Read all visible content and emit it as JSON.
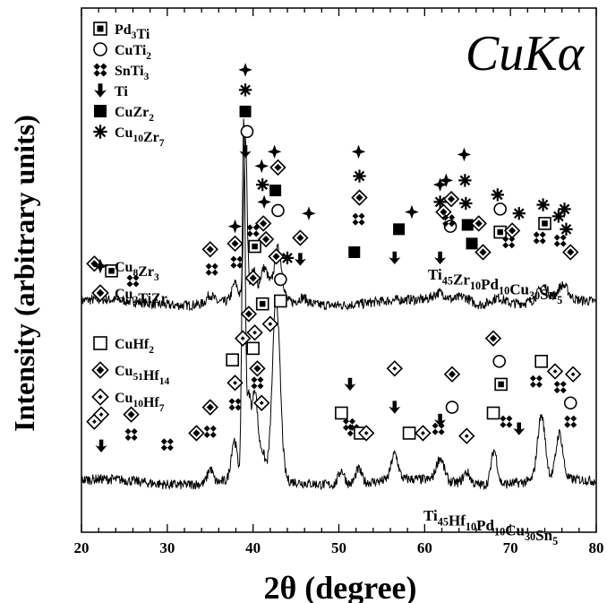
{
  "chart_data": {
    "type": "line",
    "title": "CuKα",
    "xlabel": "2θ (degree)",
    "ylabel": "Intensity (arbitrary units)",
    "xlim": [
      20,
      80
    ],
    "x_ticks": [
      20,
      30,
      40,
      50,
      60,
      70,
      80
    ],
    "grid": false,
    "series": [
      {
        "name": "Ti45Zr10Pd10Cu30Sn5",
        "label": {
          "base": [
            [
              "Ti",
              "45"
            ],
            [
              "Zr",
              "10"
            ],
            [
              "Pd",
              "10"
            ],
            [
              "Cu",
              "30"
            ],
            [
              "Sn",
              "5"
            ]
          ]
        },
        "baseline": 1.25,
        "peaks": [
          {
            "x": 35.0,
            "h": 0.06,
            "w": 0.4
          },
          {
            "x": 37.9,
            "h": 0.12,
            "w": 0.35
          },
          {
            "x": 39.1,
            "h": 1.15,
            "w": 0.2
          },
          {
            "x": 40.0,
            "h": 0.2,
            "w": 0.3
          },
          {
            "x": 41.3,
            "h": 0.22,
            "w": 0.5
          },
          {
            "x": 42.9,
            "h": 0.36,
            "w": 0.45
          },
          {
            "x": 45.8,
            "h": 0.04,
            "w": 0.5
          },
          {
            "x": 61.8,
            "h": 0.06,
            "w": 0.8
          },
          {
            "x": 64.5,
            "h": 0.05,
            "w": 0.8
          },
          {
            "x": 68.5,
            "h": 0.05,
            "w": 0.8
          },
          {
            "x": 73.8,
            "h": 0.1,
            "w": 0.6
          },
          {
            "x": 76.1,
            "h": 0.1,
            "w": 0.6
          }
        ]
      },
      {
        "name": "Ti45Hf10Pd10Cu30Sn5",
        "label": {
          "base": [
            [
              "Ti",
              "45"
            ],
            [
              "Hf",
              "10"
            ],
            [
              "Pd",
              "10"
            ],
            [
              "Cu",
              "30"
            ],
            [
              "Sn",
              "5"
            ]
          ]
        },
        "baseline": 0.0,
        "peaks": [
          {
            "x": 35.0,
            "h": 0.1,
            "w": 0.3
          },
          {
            "x": 37.8,
            "h": 0.28,
            "w": 0.35
          },
          {
            "x": 38.9,
            "h": 2.5,
            "w": 0.18
          },
          {
            "x": 39.5,
            "h": 0.55,
            "w": 0.25
          },
          {
            "x": 40.2,
            "h": 0.6,
            "w": 0.3
          },
          {
            "x": 41.0,
            "h": 0.2,
            "w": 0.4
          },
          {
            "x": 42.7,
            "h": 1.25,
            "w": 0.45
          },
          {
            "x": 50.3,
            "h": 0.1,
            "w": 0.35
          },
          {
            "x": 52.3,
            "h": 0.1,
            "w": 0.35
          },
          {
            "x": 56.5,
            "h": 0.18,
            "w": 0.4
          },
          {
            "x": 61.8,
            "h": 0.16,
            "w": 0.45
          },
          {
            "x": 64.9,
            "h": 0.08,
            "w": 0.4
          },
          {
            "x": 68.1,
            "h": 0.24,
            "w": 0.35
          },
          {
            "x": 73.6,
            "h": 0.45,
            "w": 0.45
          },
          {
            "x": 75.7,
            "h": 0.32,
            "w": 0.4
          }
        ]
      }
    ],
    "legend_top": [
      {
        "marker": "sq-dot",
        "formula": [
          [
            "Pd",
            "3"
          ],
          [
            "Ti",
            ""
          ]
        ]
      },
      {
        "marker": "circle",
        "formula": [
          [
            "CuTi",
            "2"
          ]
        ]
      },
      {
        "marker": "four-diamond",
        "formula": [
          [
            "SnTi",
            "3"
          ]
        ]
      },
      {
        "marker": "arrow",
        "formula": [
          [
            "Ti",
            ""
          ]
        ]
      },
      {
        "marker": "filled-square",
        "formula": [
          [
            "CuZr",
            "2"
          ]
        ]
      },
      {
        "marker": "asterisk",
        "formula": [
          [
            "Cu",
            "10"
          ],
          [
            "Zr",
            "7"
          ]
        ]
      }
    ],
    "legend_middle": [
      {
        "marker": "star4",
        "formula": [
          [
            "Cu",
            "8"
          ],
          [
            "Zr",
            "3"
          ]
        ]
      },
      {
        "marker": "diamond-dot",
        "formula": [
          [
            "Cu",
            "2"
          ],
          [
            "TiZr",
            ""
          ]
        ]
      }
    ],
    "legend_bottom": [
      {
        "marker": "open-square",
        "formula": [
          [
            "CuHf",
            "2"
          ]
        ]
      },
      {
        "marker": "diamond-dot",
        "formula": [
          [
            "Cu",
            "51"
          ],
          [
            "Hf",
            "14"
          ]
        ]
      },
      {
        "marker": "diamond-small-dot",
        "formula": [
          [
            "Cu",
            "10"
          ],
          [
            "Hf",
            "7"
          ]
        ]
      }
    ],
    "phase_markers": [
      {
        "x": 21.5,
        "y": 1.52,
        "m": "diamond-dot"
      },
      {
        "x": 23.5,
        "y": 1.47,
        "m": "sq-dot"
      },
      {
        "x": 26.0,
        "y": 1.4,
        "m": "four-diamond"
      },
      {
        "x": 35.0,
        "y": 1.62,
        "m": "diamond-dot"
      },
      {
        "x": 35.2,
        "y": 1.48,
        "m": "four-diamond"
      },
      {
        "x": 37.9,
        "y": 1.78,
        "m": "star4"
      },
      {
        "x": 37.9,
        "y": 1.66,
        "m": "diamond-dot"
      },
      {
        "x": 38.1,
        "y": 1.53,
        "m": "four-diamond"
      },
      {
        "x": 39.1,
        "y": 2.87,
        "m": "star4"
      },
      {
        "x": 39.1,
        "y": 2.73,
        "m": "asterisk"
      },
      {
        "x": 39.1,
        "y": 2.58,
        "m": "filled-square"
      },
      {
        "x": 39.3,
        "y": 2.44,
        "m": "circle"
      },
      {
        "x": 39.1,
        "y": 2.3,
        "m": "arrow"
      },
      {
        "x": 40.0,
        "y": 1.75,
        "m": "four-diamond"
      },
      {
        "x": 40.2,
        "y": 1.64,
        "m": "sq-dot"
      },
      {
        "x": 41.0,
        "y": 2.2,
        "m": "star4"
      },
      {
        "x": 41.1,
        "y": 2.07,
        "m": "asterisk"
      },
      {
        "x": 41.3,
        "y": 1.95,
        "m": "star4"
      },
      {
        "x": 41.2,
        "y": 1.8,
        "m": "diamond-dot"
      },
      {
        "x": 41.5,
        "y": 1.69,
        "m": "diamond-dot"
      },
      {
        "x": 42.5,
        "y": 2.3,
        "m": "star4"
      },
      {
        "x": 42.9,
        "y": 2.19,
        "m": "diamond-dot"
      },
      {
        "x": 42.6,
        "y": 2.03,
        "m": "filled-square"
      },
      {
        "x": 42.9,
        "y": 1.89,
        "m": "circle"
      },
      {
        "x": 44.0,
        "y": 1.56,
        "m": "asterisk"
      },
      {
        "x": 45.5,
        "y": 1.7,
        "m": "diamond-dot"
      },
      {
        "x": 45.5,
        "y": 1.55,
        "m": "arrow"
      },
      {
        "x": 46.5,
        "y": 1.87,
        "m": "star4"
      },
      {
        "x": 52.3,
        "y": 2.3,
        "m": "star4"
      },
      {
        "x": 52.4,
        "y": 2.13,
        "m": "asterisk"
      },
      {
        "x": 52.4,
        "y": 1.98,
        "m": "diamond-dot"
      },
      {
        "x": 52.3,
        "y": 1.83,
        "m": "four-diamond"
      },
      {
        "x": 51.8,
        "y": 1.6,
        "m": "filled-square"
      },
      {
        "x": 56.5,
        "y": 1.56,
        "m": "arrow"
      },
      {
        "x": 57.0,
        "y": 1.76,
        "m": "filled-square"
      },
      {
        "x": 58.5,
        "y": 1.88,
        "m": "star4"
      },
      {
        "x": 61.8,
        "y": 2.07,
        "m": "star4"
      },
      {
        "x": 61.8,
        "y": 1.95,
        "m": "asterisk"
      },
      {
        "x": 62.2,
        "y": 1.88,
        "m": "diamond-dot"
      },
      {
        "x": 61.8,
        "y": 1.56,
        "m": "arrow"
      },
      {
        "x": 62.5,
        "y": 2.1,
        "m": "star4"
      },
      {
        "x": 63.1,
        "y": 1.97,
        "m": "diamond-dot"
      },
      {
        "x": 63.0,
        "y": 1.78,
        "m": "circle"
      },
      {
        "x": 62.8,
        "y": 1.82,
        "m": "four-diamond"
      },
      {
        "x": 64.6,
        "y": 2.28,
        "m": "star4"
      },
      {
        "x": 64.7,
        "y": 2.1,
        "m": "asterisk"
      },
      {
        "x": 64.8,
        "y": 1.94,
        "m": "asterisk"
      },
      {
        "x": 65.0,
        "y": 1.79,
        "m": "filled-square"
      },
      {
        "x": 65.5,
        "y": 1.66,
        "m": "filled-square"
      },
      {
        "x": 66.3,
        "y": 1.8,
        "m": "diamond-dot"
      },
      {
        "x": 66.8,
        "y": 1.6,
        "m": "diamond-dot"
      },
      {
        "x": 68.5,
        "y": 2.0,
        "m": "asterisk"
      },
      {
        "x": 68.8,
        "y": 1.9,
        "m": "circle"
      },
      {
        "x": 68.8,
        "y": 1.74,
        "m": "sq-dot"
      },
      {
        "x": 69.8,
        "y": 1.67,
        "m": "four-diamond"
      },
      {
        "x": 70.2,
        "y": 1.75,
        "m": "diamond-dot"
      },
      {
        "x": 71.0,
        "y": 1.87,
        "m": "asterisk"
      },
      {
        "x": 73.8,
        "y": 1.93,
        "m": "asterisk"
      },
      {
        "x": 74.0,
        "y": 1.8,
        "m": "sq-dot"
      },
      {
        "x": 73.4,
        "y": 1.7,
        "m": "four-diamond"
      },
      {
        "x": 75.6,
        "y": 1.85,
        "m": "asterisk"
      },
      {
        "x": 76.3,
        "y": 1.9,
        "m": "asterisk"
      },
      {
        "x": 76.5,
        "y": 1.76,
        "m": "asterisk"
      },
      {
        "x": 75.8,
        "y": 1.68,
        "m": "four-diamond"
      },
      {
        "x": 77.0,
        "y": 1.6,
        "m": "diamond-dot"
      },
      {
        "x": 21.5,
        "y": 0.42,
        "m": "diamond-small-dot"
      },
      {
        "x": 22.3,
        "y": 0.25,
        "m": "arrow"
      },
      {
        "x": 22.3,
        "y": 0.47,
        "m": "diamond-small-dot"
      },
      {
        "x": 25.8,
        "y": 0.47,
        "m": "diamond-dot"
      },
      {
        "x": 25.8,
        "y": 0.33,
        "m": "four-diamond"
      },
      {
        "x": 30.0,
        "y": 0.26,
        "m": "four-diamond"
      },
      {
        "x": 33.4,
        "y": 0.34,
        "m": "diamond-dot"
      },
      {
        "x": 35.0,
        "y": 0.52,
        "m": "diamond-dot"
      },
      {
        "x": 35.0,
        "y": 0.35,
        "m": "four-diamond"
      },
      {
        "x": 37.6,
        "y": 0.85,
        "m": "open-square"
      },
      {
        "x": 37.9,
        "y": 0.69,
        "m": "diamond-small-dot"
      },
      {
        "x": 37.9,
        "y": 0.54,
        "m": "four-diamond"
      },
      {
        "x": 38.8,
        "y": 1.0,
        "m": "diamond-small-dot"
      },
      {
        "x": 39.5,
        "y": 1.17,
        "m": "diamond-dot"
      },
      {
        "x": 40.0,
        "y": 1.42,
        "m": "diamond-dot"
      },
      {
        "x": 40.0,
        "y": 0.93,
        "m": "open-square"
      },
      {
        "x": 40.2,
        "y": 1.04,
        "m": "diamond-small-dot"
      },
      {
        "x": 40.5,
        "y": 0.69,
        "m": "four-diamond"
      },
      {
        "x": 40.5,
        "y": 0.79,
        "m": "diamond-dot"
      },
      {
        "x": 41.0,
        "y": 0.55,
        "m": "diamond-small-dot"
      },
      {
        "x": 41.1,
        "y": 1.24,
        "m": "sq-dot"
      },
      {
        "x": 42.0,
        "y": 1.1,
        "m": "diamond-small-dot"
      },
      {
        "x": 42.7,
        "y": 1.57,
        "m": "diamond-dot"
      },
      {
        "x": 43.2,
        "y": 1.41,
        "m": "circle"
      },
      {
        "x": 43.2,
        "y": 1.26,
        "m": "open-square"
      },
      {
        "x": 50.3,
        "y": 0.48,
        "m": "open-square"
      },
      {
        "x": 51.3,
        "y": 0.68,
        "m": "arrow"
      },
      {
        "x": 51.2,
        "y": 0.4,
        "m": "four-diamond"
      },
      {
        "x": 51.7,
        "y": 0.36,
        "m": "four-diamond"
      },
      {
        "x": 52.5,
        "y": 0.34,
        "m": "open-square"
      },
      {
        "x": 53.2,
        "y": 0.34,
        "m": "diamond-small-dot"
      },
      {
        "x": 56.5,
        "y": 0.79,
        "m": "diamond-small-dot"
      },
      {
        "x": 56.5,
        "y": 0.52,
        "m": "arrow"
      },
      {
        "x": 58.2,
        "y": 0.34,
        "m": "open-square"
      },
      {
        "x": 59.8,
        "y": 0.34,
        "m": "diamond-small-dot"
      },
      {
        "x": 61.8,
        "y": 0.43,
        "m": "arrow"
      },
      {
        "x": 61.6,
        "y": 0.37,
        "m": "four-diamond"
      },
      {
        "x": 63.2,
        "y": 0.75,
        "m": "diamond-dot"
      },
      {
        "x": 63.2,
        "y": 0.52,
        "m": "circle"
      },
      {
        "x": 64.9,
        "y": 0.32,
        "m": "diamond-small-dot"
      },
      {
        "x": 68.0,
        "y": 1.0,
        "m": "diamond-dot"
      },
      {
        "x": 68.0,
        "y": 0.48,
        "m": "open-square"
      },
      {
        "x": 68.7,
        "y": 0.84,
        "m": "circle"
      },
      {
        "x": 68.9,
        "y": 0.68,
        "m": "sq-dot"
      },
      {
        "x": 69.5,
        "y": 0.42,
        "m": "four-diamond"
      },
      {
        "x": 71.0,
        "y": 0.37,
        "m": "arrow"
      },
      {
        "x": 73.6,
        "y": 0.84,
        "m": "open-square"
      },
      {
        "x": 73.0,
        "y": 0.7,
        "m": "four-diamond"
      },
      {
        "x": 75.2,
        "y": 0.77,
        "m": "diamond-small-dot"
      },
      {
        "x": 75.8,
        "y": 0.66,
        "m": "four-diamond"
      },
      {
        "x": 77.3,
        "y": 0.75,
        "m": "diamond-small-dot"
      },
      {
        "x": 77.0,
        "y": 0.55,
        "m": "circle"
      },
      {
        "x": 77.0,
        "y": 0.42,
        "m": "four-diamond"
      }
    ]
  }
}
